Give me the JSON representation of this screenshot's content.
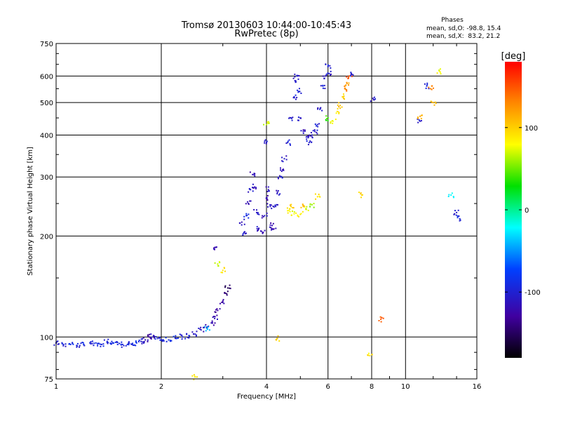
{
  "chart_data": {
    "type": "scatter",
    "title": "Tromsø 20130603 10:44:00-10:45:43",
    "subtitle": "RwPretec (8p)",
    "xlabel": "Frequency [MHz]",
    "ylabel": "Stationary phase Virtual Height [km]",
    "x_scale": "log",
    "y_scale": "log",
    "xlim": [
      1,
      16
    ],
    "ylim": [
      75,
      750
    ],
    "x_ticks": [
      1,
      2,
      4,
      6,
      8,
      10,
      16
    ],
    "y_ticks": [
      75,
      100,
      200,
      300,
      400,
      500,
      600,
      750
    ],
    "x_tick_labels": [
      "1",
      "2",
      "4",
      "6",
      "8",
      "10",
      "16"
    ],
    "y_tick_labels": [
      "75",
      "100",
      "200",
      "300",
      "400",
      "500",
      "600",
      "750"
    ],
    "grid": true,
    "info": {
      "heading": "Phases",
      "line_o": "mean, sd,O: -98.8, 15.4",
      "line_x": "mean, sd,X:  83.2, 21.2"
    },
    "colorbar": {
      "label": "[deg]",
      "range": [
        -180,
        180
      ],
      "ticks": [
        100,
        0,
        -100
      ],
      "tick_labels": [
        "100",
        "0",
        "-100"
      ]
    },
    "series": [
      {
        "name": "trace",
        "note": "freq [MHz], virtual height [km], phase [deg]",
        "points": [
          [
            1.0,
            96,
            -110
          ],
          [
            1.05,
            95,
            -105
          ],
          [
            1.1,
            95,
            -95
          ],
          [
            1.15,
            94,
            -100
          ],
          [
            1.2,
            95,
            -98
          ],
          [
            1.25,
            96,
            -102
          ],
          [
            1.3,
            96,
            -96
          ],
          [
            1.35,
            95,
            -100
          ],
          [
            1.4,
            97,
            -105
          ],
          [
            1.45,
            96,
            -97
          ],
          [
            1.5,
            95,
            -100
          ],
          [
            1.55,
            95,
            -103
          ],
          [
            1.6,
            95,
            -98
          ],
          [
            1.65,
            95,
            -100
          ],
          [
            1.7,
            96,
            -95
          ],
          [
            1.75,
            97,
            -110
          ],
          [
            1.8,
            98,
            -120
          ],
          [
            1.85,
            100,
            -130
          ],
          [
            1.9,
            101,
            -115
          ],
          [
            1.95,
            99,
            -100
          ],
          [
            2.0,
            98,
            -100
          ],
          [
            2.1,
            98,
            -97
          ],
          [
            2.2,
            99,
            -100
          ],
          [
            2.3,
            100,
            -105
          ],
          [
            2.4,
            101,
            -100
          ],
          [
            2.5,
            102,
            -108
          ],
          [
            2.6,
            105,
            -115
          ],
          [
            2.7,
            107,
            -120
          ],
          [
            2.8,
            110,
            -125
          ],
          [
            2.85,
            115,
            -120
          ],
          [
            2.9,
            120,
            -130
          ],
          [
            3.0,
            128,
            -125
          ],
          [
            3.05,
            135,
            -140
          ],
          [
            3.1,
            140,
            -150
          ],
          [
            2.85,
            185,
            -120
          ],
          [
            2.9,
            165,
            70
          ],
          [
            3.0,
            158,
            90
          ],
          [
            2.7,
            106,
            -40
          ],
          [
            2.5,
            76,
            90
          ],
          [
            3.4,
            220,
            -120
          ],
          [
            3.45,
            205,
            -110
          ],
          [
            3.5,
            230,
            -100
          ],
          [
            3.55,
            250,
            -120
          ],
          [
            3.6,
            275,
            -110
          ],
          [
            3.65,
            305,
            -120
          ],
          [
            3.7,
            280,
            -120
          ],
          [
            3.75,
            235,
            -115
          ],
          [
            3.8,
            210,
            -110
          ],
          [
            3.9,
            205,
            -120
          ],
          [
            3.95,
            230,
            -110
          ],
          [
            4.0,
            260,
            -120
          ],
          [
            4.05,
            275,
            -115
          ],
          [
            4.1,
            245,
            -110
          ],
          [
            4.15,
            215,
            -120
          ],
          [
            4.2,
            210,
            -125
          ],
          [
            4.25,
            245,
            -110
          ],
          [
            4.3,
            270,
            -115
          ],
          [
            4.4,
            300,
            -110
          ],
          [
            4.45,
            315,
            -112
          ],
          [
            4.5,
            340,
            -110
          ],
          [
            4.6,
            380,
            -105
          ],
          [
            4.7,
            450,
            -110
          ],
          [
            4.8,
            520,
            -105
          ],
          [
            4.85,
            580,
            -110
          ],
          [
            4.9,
            600,
            -110
          ],
          [
            4.95,
            540,
            -105
          ],
          [
            5.0,
            450,
            -110
          ],
          [
            5.1,
            410,
            -115
          ],
          [
            5.2,
            395,
            -110
          ],
          [
            5.3,
            380,
            -105
          ],
          [
            5.4,
            400,
            -110
          ],
          [
            5.5,
            410,
            -110
          ],
          [
            5.6,
            430,
            -105
          ],
          [
            5.7,
            480,
            -110
          ],
          [
            5.8,
            560,
            -105
          ],
          [
            5.9,
            600,
            -110
          ],
          [
            6.0,
            640,
            -105
          ],
          [
            6.05,
            610,
            -110
          ],
          [
            4.0,
            380,
            -110
          ],
          [
            4.0,
            430,
            70
          ],
          [
            4.3,
            99,
            100
          ],
          [
            4.6,
            238,
            85
          ],
          [
            4.8,
            233,
            80
          ],
          [
            5.0,
            232,
            90
          ],
          [
            5.2,
            240,
            75
          ],
          [
            5.4,
            248,
            60
          ],
          [
            5.6,
            262,
            90
          ],
          [
            4.7,
            245,
            100
          ],
          [
            5.1,
            245,
            110
          ],
          [
            6.0,
            450,
            40
          ],
          [
            6.2,
            440,
            80
          ],
          [
            6.4,
            470,
            90
          ],
          [
            6.6,
            520,
            100
          ],
          [
            6.8,
            570,
            120
          ],
          [
            6.9,
            600,
            150
          ],
          [
            6.5,
            490,
            110
          ],
          [
            6.7,
            550,
            130
          ],
          [
            7.0,
            610,
            -110
          ],
          [
            7.5,
            265,
            100
          ],
          [
            8.1,
            510,
            -110
          ],
          [
            8.5,
            113,
            150
          ],
          [
            7.9,
            88,
            90
          ],
          [
            11.0,
            440,
            -110
          ],
          [
            11.0,
            455,
            120
          ],
          [
            11.5,
            560,
            -100
          ],
          [
            11.8,
            550,
            130
          ],
          [
            12.0,
            500,
            110
          ],
          [
            12.5,
            620,
            80
          ],
          [
            13.5,
            265,
            -20
          ],
          [
            14.0,
            235,
            -110
          ],
          [
            14.3,
            225,
            -100
          ]
        ]
      }
    ]
  }
}
